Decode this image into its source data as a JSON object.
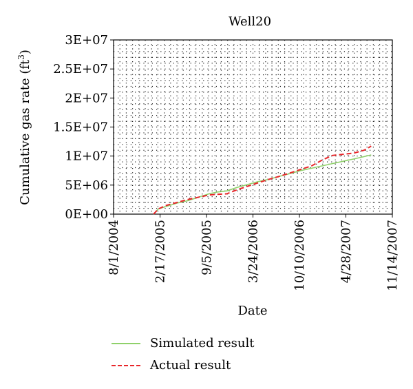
{
  "chart_data": {
    "type": "line",
    "title": "Well20",
    "xlabel": "Date",
    "ylabel": "Cumulative gas rate (ft",
    "ylabel_sup": "3",
    "ylabel_close": ")",
    "x_ticks": [
      "8/1/2004",
      "2/17/2005",
      "9/5/2005",
      "3/24/2006",
      "10/10/2006",
      "4/28/2007",
      "11/14/2007"
    ],
    "y_ticks": [
      "0E+00",
      "5E+06",
      "1E+07",
      "1.5E+07",
      "2E+07",
      "2.5E+07",
      "3E+07"
    ],
    "xlim": [
      "2004-08-01",
      "2007-11-14"
    ],
    "ylim": [
      0,
      30000000
    ],
    "grid": "dotted",
    "legend_position": "bottom",
    "series": [
      {
        "name": "Simulated result",
        "color": "#8fd16a",
        "style": "solid",
        "x": [
          "2005-01-20",
          "2005-02-10",
          "2005-03-15",
          "2005-05-01",
          "2005-06-15",
          "2005-08-01",
          "2005-09-15",
          "2005-10-20",
          "2005-12-01",
          "2006-01-15",
          "2006-03-01",
          "2006-04-15",
          "2006-06-01",
          "2006-07-15",
          "2006-09-01",
          "2006-10-15",
          "2006-12-01",
          "2007-01-15",
          "2007-03-01",
          "2007-04-15",
          "2007-06-01",
          "2007-07-15",
          "2007-08-15"
        ],
        "y": [
          0,
          900000,
          1300000,
          1900000,
          2300000,
          2900000,
          3500000,
          3800000,
          4000000,
          4600000,
          5100000,
          5600000,
          6000000,
          6500000,
          7000000,
          7500000,
          7900000,
          8300000,
          8700000,
          9100000,
          9500000,
          9900000,
          10200000
        ]
      },
      {
        "name": "Actual result",
        "color": "#e8262a",
        "style": "dashed",
        "x": [
          "2005-01-20",
          "2005-02-10",
          "2005-03-15",
          "2005-05-01",
          "2005-06-15",
          "2005-08-01",
          "2005-09-15",
          "2005-10-20",
          "2005-12-01",
          "2006-01-15",
          "2006-03-01",
          "2006-04-15",
          "2006-06-01",
          "2006-07-15",
          "2006-09-01",
          "2006-10-15",
          "2006-12-01",
          "2007-01-15",
          "2007-03-01",
          "2007-04-15",
          "2007-06-01",
          "2007-07-15",
          "2007-08-15"
        ],
        "y": [
          0,
          900000,
          1500000,
          2000000,
          2500000,
          2900000,
          3300000,
          3400000,
          3500000,
          4200000,
          4800000,
          5400000,
          6000000,
          6500000,
          7100000,
          7700000,
          8300000,
          9300000,
          10100000,
          10300000,
          10500000,
          11000000,
          11700000
        ]
      }
    ]
  }
}
